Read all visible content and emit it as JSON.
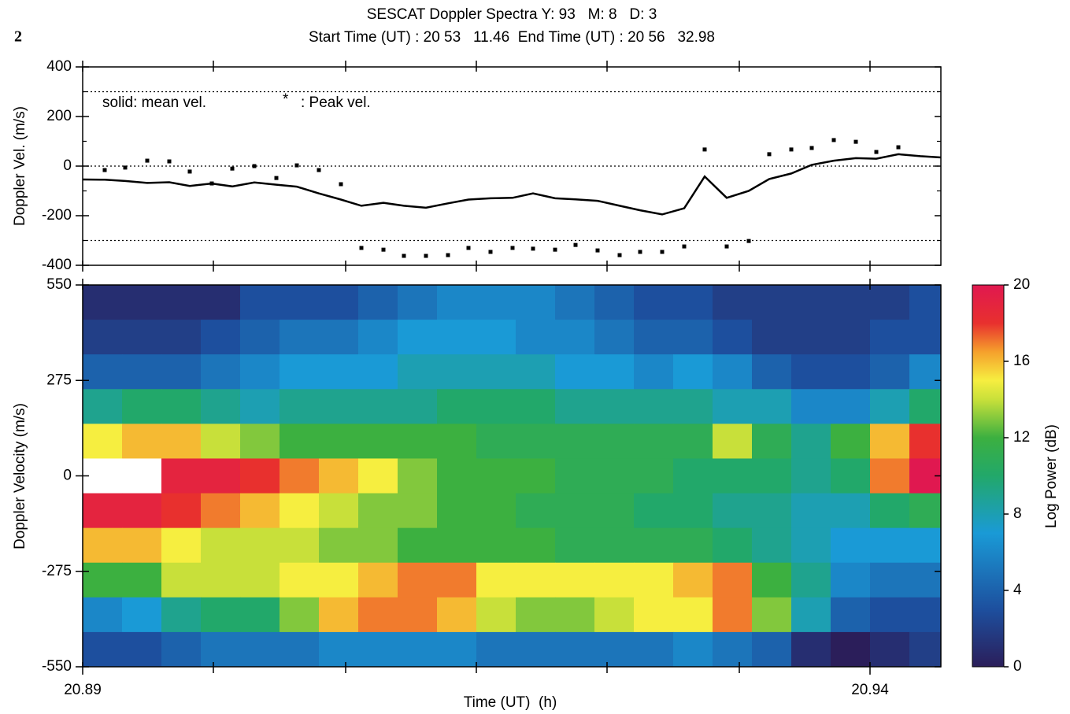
{
  "figure_label": "2",
  "chart_data": [
    {
      "type": "line",
      "title": "SESCAT Doppler Spectra Y: 93   M: 8   D: 3",
      "subtitle": "Start Time (UT) : 20 53   11.46  End Time (UT) : 20 56   32.98",
      "ylabel": "Doppler Vel. (m/s)",
      "annotations": [
        "solid: mean vel.",
        "*",
        ": Peak vel."
      ],
      "xlim": [
        20.89,
        20.9445
      ],
      "xticks": [
        20.89,
        20.8983,
        20.9067,
        20.915,
        20.9233,
        20.9317,
        20.94
      ],
      "ylim": [
        -400,
        400
      ],
      "yticks": [
        -400,
        -200,
        0,
        200,
        400
      ],
      "yminorticks": [
        -300,
        -100,
        100,
        300
      ],
      "reference_lines": [
        -300,
        0,
        300
      ],
      "series": [
        {
          "style": "line",
          "color": "#000000",
          "x": [
            20.89,
            20.8914,
            20.8927,
            20.8941,
            20.8955,
            20.8968,
            20.8982,
            20.8995,
            20.9009,
            20.9023,
            20.9036,
            20.905,
            20.9064,
            20.9077,
            20.9091,
            20.9104,
            20.9118,
            20.9132,
            20.9145,
            20.9159,
            20.9173,
            20.9186,
            20.92,
            20.9213,
            20.9227,
            20.9241,
            20.9254,
            20.9268,
            20.9282,
            20.9295,
            20.9309,
            20.9323,
            20.9336,
            20.935,
            20.9363,
            20.9377,
            20.9391,
            20.9404,
            20.9418,
            20.9432,
            20.9445
          ],
          "values": [
            -54,
            -55,
            -60,
            -68,
            -65,
            -80,
            -70,
            -82,
            -66,
            -75,
            -83,
            -110,
            -135,
            -160,
            -148,
            -160,
            -168,
            -150,
            -135,
            -130,
            -128,
            -110,
            -130,
            -134,
            -140,
            -160,
            -178,
            -195,
            -170,
            -42,
            -128,
            -100,
            -52,
            -30,
            5,
            22,
            32,
            30,
            48,
            40,
            35
          ]
        },
        {
          "style": "markers",
          "color": "#000000",
          "x": [
            20.8914,
            20.8927,
            20.8941,
            20.8955,
            20.8968,
            20.8982,
            20.8995,
            20.9009,
            20.9023,
            20.9036,
            20.905,
            20.9064,
            20.9077,
            20.9091,
            20.9104,
            20.9118,
            20.9132,
            20.9145,
            20.9159,
            20.9173,
            20.9186,
            20.92,
            20.9213,
            20.9227,
            20.9241,
            20.9254,
            20.9268,
            20.9282,
            20.9295,
            20.9309,
            20.9323,
            20.9336,
            20.935,
            20.9363,
            20.9377,
            20.9391,
            20.9404,
            20.9418
          ],
          "values": [
            -16,
            -6,
            22,
            19,
            -22,
            -70,
            -10,
            0,
            -48,
            3,
            -16,
            -73,
            -330,
            -337,
            -362,
            -362,
            -359,
            -330,
            -346,
            -330,
            -333,
            -337,
            -318,
            -340,
            -359,
            -346,
            -346,
            -324,
            67,
            -324,
            -302,
            48,
            67,
            73,
            105,
            98,
            57,
            76
          ]
        }
      ]
    },
    {
      "type": "heatmap",
      "xlabel": "Time (UT)  (h)",
      "ylabel": "Doppler Velocity (m/s)",
      "xlim": [
        20.89,
        20.9445
      ],
      "xticks": [
        20.89,
        20.94
      ],
      "xminorticks": [
        20.8983,
        20.9067,
        20.915,
        20.9233,
        20.9317
      ],
      "ylim": [
        -550,
        550
      ],
      "yticks": [
        -550,
        -275,
        0,
        275,
        550
      ],
      "x_edges": [
        20.89,
        20.8925,
        20.895,
        20.8975,
        20.9,
        20.9025,
        20.905,
        20.9075,
        20.91,
        20.9125,
        20.915,
        20.9175,
        20.92,
        20.9225,
        20.925,
        20.9275,
        20.93,
        20.9325,
        20.935,
        20.9375,
        20.94,
        20.9425,
        20.9445
      ],
      "y_edges": [
        550,
        450,
        350,
        250,
        150,
        50,
        -50,
        -150,
        -250,
        -350,
        -450,
        -550
      ],
      "z": [
        [
          1,
          1,
          1,
          1,
          3,
          3,
          3,
          4,
          5,
          6,
          6,
          6,
          5,
          4,
          3,
          3,
          2,
          2,
          2,
          2,
          2,
          3
        ],
        [
          2,
          2,
          2,
          3,
          4,
          5,
          5,
          6,
          7,
          7,
          7,
          6,
          6,
          5,
          4,
          4,
          3,
          2,
          2,
          2,
          3,
          3
        ],
        [
          4,
          4,
          4,
          5,
          6,
          7,
          7,
          7,
          8,
          8,
          8,
          8,
          7,
          7,
          6,
          7,
          6,
          4,
          3,
          3,
          4,
          6
        ],
        [
          9,
          10,
          10,
          9,
          8,
          9,
          9,
          9,
          9,
          10,
          10,
          10,
          9,
          9,
          9,
          9,
          8,
          8,
          6,
          6,
          8,
          10
        ],
        [
          15,
          16,
          16,
          14,
          13,
          12,
          12,
          12,
          12,
          12,
          11,
          11,
          11,
          11,
          11,
          11,
          14,
          11,
          9,
          12,
          16,
          18
        ],
        [
          21,
          21,
          19,
          19,
          18,
          17,
          16,
          15,
          13,
          12,
          12,
          12,
          11,
          11,
          11,
          10,
          10,
          10,
          9,
          10,
          17,
          20
        ],
        [
          19,
          19,
          18,
          17,
          16,
          15,
          14,
          13,
          13,
          12,
          12,
          11,
          11,
          11,
          10,
          10,
          9,
          9,
          8,
          8,
          10,
          11
        ],
        [
          16,
          16,
          15,
          14,
          14,
          14,
          13,
          13,
          12,
          12,
          12,
          12,
          11,
          11,
          11,
          11,
          10,
          9,
          8,
          7,
          7,
          7
        ],
        [
          12,
          12,
          14,
          14,
          14,
          15,
          15,
          16,
          17,
          17,
          15,
          15,
          15,
          15,
          15,
          16,
          17,
          12,
          9,
          6,
          5,
          5
        ],
        [
          6,
          7,
          9,
          10,
          10,
          13,
          16,
          17,
          17,
          16,
          14,
          13,
          13,
          14,
          15,
          15,
          17,
          13,
          8,
          4,
          3,
          3
        ],
        [
          3,
          3,
          4,
          5,
          5,
          5,
          6,
          6,
          6,
          6,
          5,
          5,
          5,
          5,
          5,
          6,
          5,
          4,
          1,
          0,
          1,
          2
        ]
      ],
      "colorbar": {
        "label": "Log Power (dB)",
        "lim": [
          0,
          20
        ],
        "ticks": [
          0,
          4,
          8,
          12,
          16,
          20
        ]
      },
      "colormap": [
        {
          "value": 0,
          "color": "#2b1e5a"
        },
        {
          "value": 3,
          "color": "#1d4f9e"
        },
        {
          "value": 7,
          "color": "#1a9ad6"
        },
        {
          "value": 10,
          "color": "#22a86a"
        },
        {
          "value": 12,
          "color": "#3cb040"
        },
        {
          "value": 14,
          "color": "#c8e03a"
        },
        {
          "value": 15,
          "color": "#f6ee40"
        },
        {
          "value": 16.5,
          "color": "#f5a02c"
        },
        {
          "value": 18,
          "color": "#e8302e"
        },
        {
          "value": 20,
          "color": "#e01850"
        }
      ],
      "over_color": "#ffffff"
    }
  ]
}
